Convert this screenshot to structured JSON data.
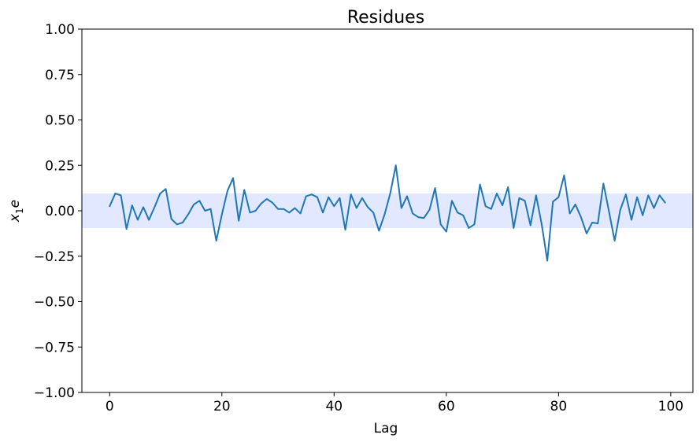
{
  "chart_data": {
    "type": "line",
    "title": "Residues",
    "xlabel": "Lag",
    "ylabel": "x_1 e",
    "ylabel_parts": {
      "main": "x",
      "sub": "1",
      "suffix": "e"
    },
    "xlim": [
      -4.95,
      103.95
    ],
    "ylim": [
      -1.0,
      1.0
    ],
    "xticks": [
      0,
      20,
      40,
      60,
      80,
      100
    ],
    "xtick_labels": [
      "0",
      "20",
      "40",
      "60",
      "80",
      "100"
    ],
    "yticks": [
      1.0,
      0.75,
      0.5,
      0.25,
      0.0,
      -0.25,
      -0.5,
      -0.75,
      -1.0
    ],
    "ytick_labels": [
      "1.00",
      "0.75",
      "0.50",
      "0.25",
      "0.00",
      "−0.25",
      "−0.50",
      "−0.75",
      "−1.00"
    ],
    "confidence_band": {
      "lower": -0.095,
      "upper": 0.095,
      "color": "#e1e8ff"
    },
    "grid": false,
    "line_color": "#1f77b4",
    "series": [
      {
        "x": [
          0,
          1,
          2,
          3,
          4,
          5,
          6,
          7,
          8,
          9,
          10,
          11,
          12,
          13,
          14,
          15,
          16,
          17,
          18,
          19,
          20,
          21,
          22,
          23,
          24,
          25,
          26,
          27,
          28,
          29,
          30,
          31,
          32,
          33,
          34,
          35,
          36,
          37,
          38,
          39,
          40,
          41,
          42,
          43,
          44,
          45,
          46,
          47,
          48,
          49,
          50,
          51,
          52,
          53,
          54,
          55,
          56,
          57,
          58,
          59,
          60,
          61,
          62,
          63,
          64,
          65,
          66,
          67,
          68,
          69,
          70,
          71,
          72,
          73,
          74,
          75,
          76,
          77,
          78,
          79,
          80,
          81,
          82,
          83,
          84,
          85,
          86,
          87,
          88,
          89,
          90,
          91,
          92,
          93,
          94,
          95,
          96,
          97,
          98,
          99
        ],
        "values": [
          0.025,
          0.095,
          0.085,
          -0.1,
          0.03,
          -0.05,
          0.02,
          -0.05,
          0.02,
          0.095,
          0.12,
          -0.045,
          -0.075,
          -0.065,
          -0.02,
          0.035,
          0.055,
          0.0,
          0.01,
          -0.165,
          -0.02,
          0.11,
          0.18,
          -0.055,
          0.115,
          -0.01,
          0.0,
          0.04,
          0.065,
          0.045,
          0.01,
          0.01,
          -0.01,
          0.015,
          -0.015,
          0.08,
          0.09,
          0.075,
          -0.01,
          0.075,
          0.025,
          0.07,
          -0.105,
          0.09,
          0.015,
          0.07,
          0.02,
          -0.01,
          -0.11,
          -0.02,
          0.095,
          0.25,
          0.015,
          0.08,
          -0.015,
          -0.035,
          -0.04,
          0.005,
          0.125,
          -0.075,
          -0.115,
          0.055,
          -0.01,
          -0.025,
          -0.095,
          -0.075,
          0.145,
          0.025,
          0.01,
          0.095,
          0.03,
          0.13,
          -0.095,
          0.07,
          0.055,
          -0.08,
          0.085,
          -0.075,
          -0.275,
          0.05,
          0.075,
          0.195,
          -0.015,
          0.035,
          -0.035,
          -0.125,
          -0.065,
          -0.07,
          0.15,
          -0.005,
          -0.165,
          0.005,
          0.09,
          -0.05,
          0.075,
          -0.025,
          0.085,
          0.015,
          0.085,
          0.045
        ]
      }
    ]
  }
}
